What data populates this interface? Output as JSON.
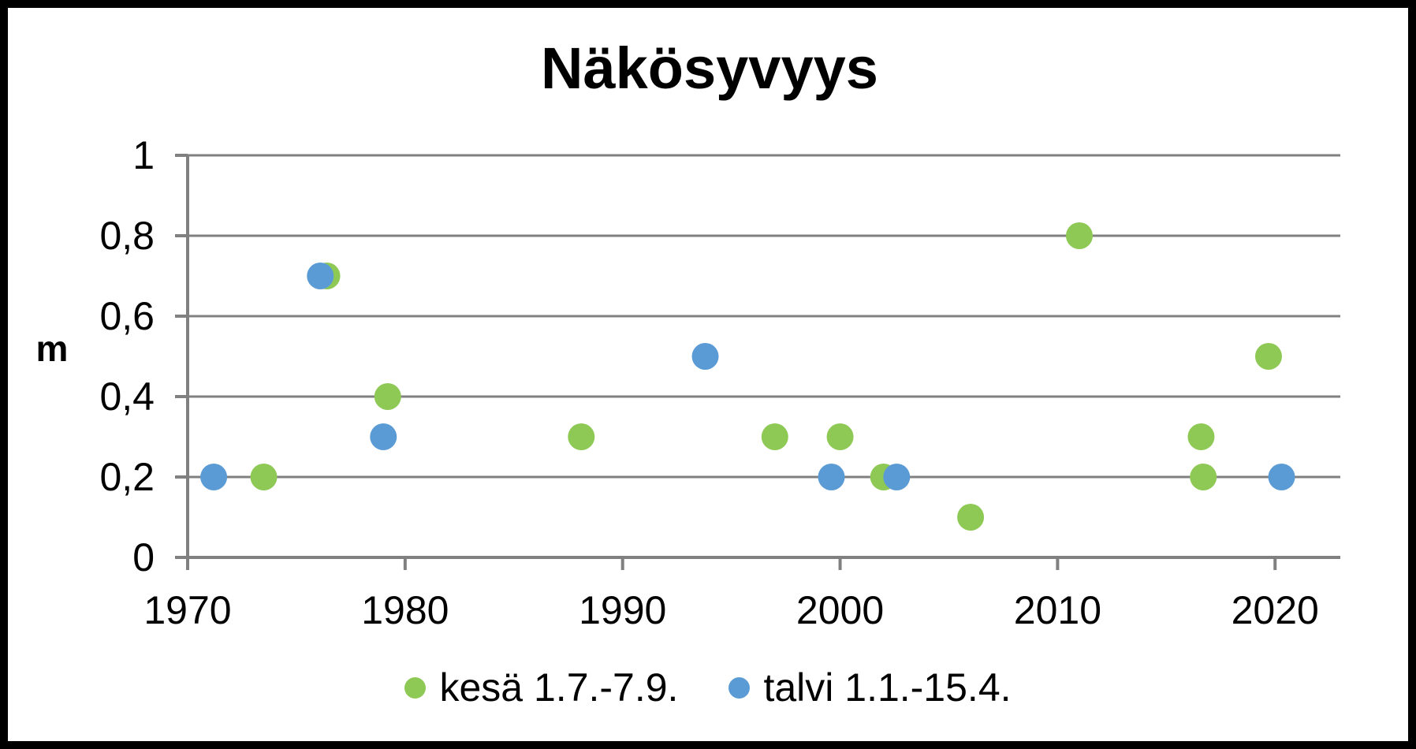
{
  "title": "Näkösyvyys",
  "y_axis_unit_label": "m",
  "colors": {
    "summer_green": "#8DC954",
    "winter_blue": "#5B9BD5",
    "grid_gray": "#808080",
    "text_black": "#000000",
    "frame_border": "#000000",
    "background": "#FFFFFF"
  },
  "legend": {
    "position": "bottom-center",
    "items": [
      {
        "label": "kesä 1.7.-7.9.",
        "color": "#8DC954"
      },
      {
        "label": "talvi 1.1.-15.4.",
        "color": "#5B9BD5"
      }
    ]
  },
  "chart_data": {
    "type": "scatter",
    "title": "Näkösyvyys",
    "xlabel": "",
    "ylabel": "m",
    "xlim": [
      1970,
      2023
    ],
    "ylim": [
      0,
      1
    ],
    "x_ticks": [
      1970,
      1980,
      1990,
      2000,
      2010,
      2020
    ],
    "y_ticks": [
      0,
      0.2,
      0.4,
      0.6,
      0.8,
      1
    ],
    "y_tick_labels": [
      "0",
      "0,2",
      "0,4",
      "0,6",
      "0,8",
      "1"
    ],
    "grid": "horizontal-only",
    "marker": "circle",
    "legend_position": "bottom",
    "series": [
      {
        "name": "kesä 1.7.-7.9.",
        "color": "#8DC954",
        "points": [
          [
            1973.5,
            0.2
          ],
          [
            1976.4,
            0.7
          ],
          [
            1979.2,
            0.4
          ],
          [
            1988.1,
            0.3
          ],
          [
            1997.0,
            0.3
          ],
          [
            2000.0,
            0.3
          ],
          [
            2002.0,
            0.2
          ],
          [
            2006.0,
            0.1
          ],
          [
            2011.0,
            0.8
          ],
          [
            2016.6,
            0.3
          ],
          [
            2016.7,
            0.2
          ],
          [
            2019.7,
            0.5
          ]
        ]
      },
      {
        "name": "talvi 1.1.-15.4.",
        "color": "#5B9BD5",
        "points": [
          [
            1971.2,
            0.2
          ],
          [
            1976.1,
            0.7
          ],
          [
            1979.0,
            0.3
          ],
          [
            1993.8,
            0.5
          ],
          [
            1999.6,
            0.2
          ],
          [
            2002.6,
            0.2
          ],
          [
            2020.3,
            0.2
          ]
        ]
      }
    ]
  }
}
